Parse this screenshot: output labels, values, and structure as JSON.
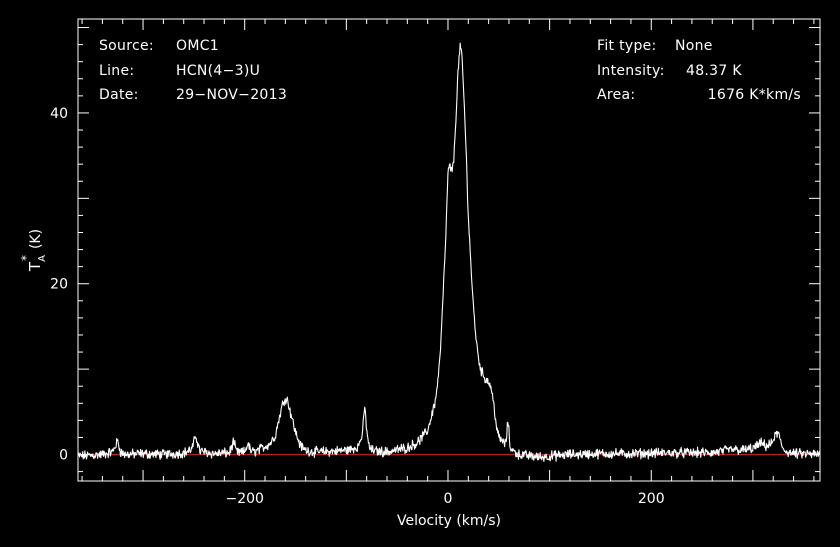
{
  "header_left": [
    {
      "key": "Source:",
      "value": "OMC1"
    },
    {
      "key": "Line:",
      "value": "HCN(4−3)U"
    },
    {
      "key": "Date:",
      "value": "29−NOV−2013"
    }
  ],
  "header_right": [
    {
      "key": "Fit type:",
      "value": "None"
    },
    {
      "key": "Intensity:",
      "value": "48.37 K"
    },
    {
      "key": "Area:",
      "value": "1676 K*km/s"
    }
  ],
  "colors": {
    "background": "#000000",
    "axes": "#ffffff",
    "spectrum": "#ffffff",
    "baseline": "#b22222"
  },
  "chart_data": {
    "type": "line",
    "xlabel": "Velocity (km/s)",
    "ylabel": "T",
    "ylabel_sup": "*",
    "ylabel_sub": "A",
    "ylabel_unit": "(K)",
    "xlim": [
      -364,
      366
    ],
    "ylim": [
      -3.1,
      51
    ],
    "xticks": [
      {
        "value": -200,
        "label": "−200"
      },
      {
        "value": 0,
        "label": "0"
      },
      {
        "value": 200,
        "label": "200"
      }
    ],
    "yticks": [
      {
        "value": 0,
        "label": "0"
      },
      {
        "value": 20,
        "label": "20"
      },
      {
        "value": 40,
        "label": "40"
      }
    ],
    "baseline_value": 0,
    "series": [
      {
        "x": [
          -364,
          -340,
          -330,
          -325,
          -322,
          -318,
          -300,
          -280,
          -260,
          -252,
          -248,
          -244,
          -230,
          -215,
          -211,
          -208,
          -205,
          -200,
          -197,
          -194,
          -191,
          -185,
          -175,
          -170,
          -165,
          -162,
          -160,
          -158,
          -155,
          -150,
          -145,
          -140,
          -130,
          -110,
          -95,
          -88,
          -84,
          -82,
          -80,
          -78,
          -75,
          -70,
          -60,
          -40,
          -30,
          -20,
          -12,
          -8,
          -5,
          -2,
          0,
          2,
          4,
          6,
          8,
          10,
          12,
          14,
          16,
          18,
          20,
          24,
          28,
          32,
          36,
          40,
          42,
          45,
          48,
          50,
          54,
          57,
          59,
          61,
          64,
          70,
          90,
          120,
          150,
          180,
          220,
          260,
          270,
          280,
          290,
          300,
          308,
          313,
          318,
          322,
          325,
          328,
          332,
          340,
          366
        ],
        "y": [
          -0.2,
          0.0,
          0.3,
          1.6,
          0.3,
          0.0,
          0.1,
          0.0,
          0.2,
          0.6,
          2.2,
          0.4,
          0.1,
          0.2,
          1.5,
          0.3,
          0.2,
          0.3,
          1.3,
          0.4,
          0.3,
          0.6,
          1.3,
          2.2,
          4.8,
          6.2,
          6.6,
          6.4,
          5.0,
          2.6,
          1.0,
          0.5,
          0.3,
          0.4,
          0.6,
          1.0,
          2.5,
          5.7,
          3.0,
          1.0,
          0.5,
          0.4,
          0.3,
          0.8,
          1.4,
          2.8,
          6.5,
          11,
          18,
          26,
          33,
          33.8,
          33,
          35,
          40,
          45,
          48,
          46,
          41,
          35,
          28,
          19,
          13,
          10,
          9.0,
          8.5,
          8.0,
          6.0,
          3.0,
          2.0,
          1.5,
          1.2,
          4.2,
          1.0,
          0.4,
          0.0,
          -0.3,
          0.0,
          0.1,
          0.1,
          0.2,
          0.2,
          0.4,
          0.6,
          0.5,
          0.7,
          1.3,
          1.0,
          1.2,
          2.2,
          2.6,
          1.0,
          0.4,
          0.1,
          0.0
        ]
      }
    ]
  }
}
